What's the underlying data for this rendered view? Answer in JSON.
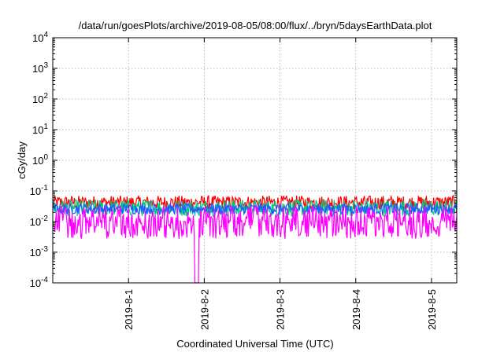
{
  "chart_data": {
    "type": "line",
    "title": "/data/run/goesPlots/archive/2019-08-05/08:00/flux/../bryn/5daysEarthData.plot",
    "xlabel": "Coordinated Universal Time (UTC)",
    "ylabel": "cGy/day",
    "yscale": "log",
    "ylim": [
      0.0001,
      10000
    ],
    "xlim": [
      "2019-07-31T00:00",
      "2019-08-05T08:00"
    ],
    "grid": true,
    "legend": "none",
    "ytick_exponents": [
      "-4",
      "-3",
      "-2",
      "-1",
      "0",
      "1",
      "2",
      "3",
      "4"
    ],
    "ytick_base": "10",
    "xtick_labels": [
      "2019-8-1",
      "2019-8-2",
      "2019-8-3",
      "2019-8-4",
      "2019-8-5"
    ],
    "xtick_dates": [
      "2019-08-01T00:00",
      "2019-08-02T00:00",
      "2019-08-03T00:00",
      "2019-08-04T00:00",
      "2019-08-05T00:00"
    ],
    "series": [
      {
        "color": "#ff0000",
        "base": 0.042,
        "amp": 0.45
      },
      {
        "color": "#00c880",
        "base": 0.028,
        "amp": 0.55
      },
      {
        "color": "#1e5aff",
        "base": 0.026,
        "amp": 0.35
      },
      {
        "color": "#ff00ff",
        "base": 0.0065,
        "amp": 0.75
      }
    ],
    "annotations": [
      {
        "date": "2019-08-01T21:10",
        "note": "data drop to bottom of axis"
      },
      {
        "date": "2019-08-01T21:50",
        "note": "data drop to bottom of axis"
      }
    ]
  }
}
